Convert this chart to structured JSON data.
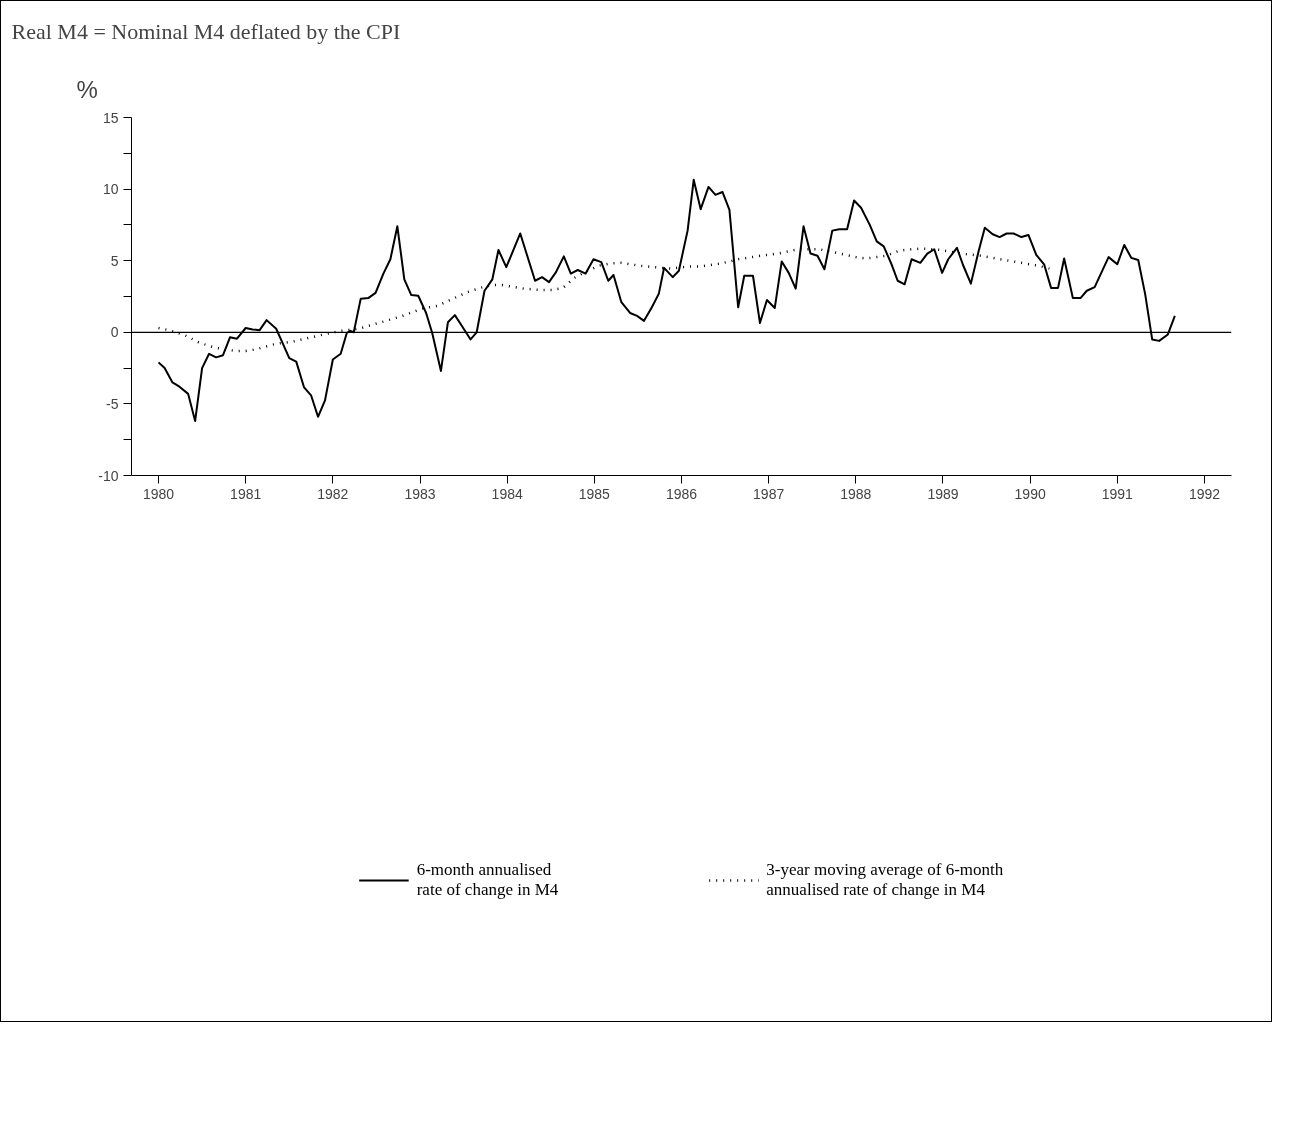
{
  "chart_data": {
    "type": "line",
    "title": "Real M4 = Nominal M4 deflated by the CPI",
    "ylabel": "%",
    "xlim": [
      1979.69,
      1992.31
    ],
    "ylim": [
      -10,
      15
    ],
    "xticks": [
      1980,
      1981,
      1982,
      1983,
      1984,
      1985,
      1986,
      1987,
      1988,
      1989,
      1990,
      1991,
      1992
    ],
    "yticks": [
      -10,
      {
        "value": -7.5,
        "label": null
      },
      -5,
      {
        "value": -2.5,
        "label": null
      },
      0,
      {
        "value": 2.5,
        "label": null
      },
      5,
      {
        "value": 7.5,
        "label": null
      },
      10,
      {
        "value": 12.5,
        "label": null
      },
      15
    ],
    "grid": false,
    "legend": "bottom",
    "ref_lines": [
      {
        "axis": "y",
        "value": 0,
        "color": "#000000",
        "line_style": "solid"
      }
    ],
    "series": [
      {
        "name": "6-month annualised rate of change in M4",
        "color": "#000000",
        "line_style": "solid",
        "x": [
          1980.0,
          1980.07,
          1980.16,
          1980.24,
          1980.34,
          1980.42,
          1980.5,
          1980.58,
          1980.66,
          1980.74,
          1980.82,
          1980.9,
          1981.0,
          1981.08,
          1981.16,
          1981.24,
          1981.35,
          1981.42,
          1981.5,
          1981.58,
          1981.67,
          1981.75,
          1981.83,
          1981.91,
          1982.0,
          1982.09,
          1982.16,
          1982.2,
          1982.24,
          1982.32,
          1982.41,
          1982.49,
          1982.58,
          1982.66,
          1982.74,
          1982.82,
          1982.9,
          1982.98,
          1983.07,
          1983.14,
          1983.24,
          1983.32,
          1983.4,
          1983.49,
          1983.58,
          1983.65,
          1983.74,
          1983.83,
          1983.9,
          1983.99,
          1984.15,
          1984.32,
          1984.4,
          1984.48,
          1984.56,
          1984.65,
          1984.73,
          1984.81,
          1984.9,
          1984.99,
          1985.08,
          1985.16,
          1985.22,
          1985.31,
          1985.41,
          1985.49,
          1985.57,
          1985.66,
          1985.74,
          1985.8,
          1985.9,
          1985.97,
          1986.07,
          1986.14,
          1986.22,
          1986.31,
          1986.39,
          1986.47,
          1986.55,
          1986.65,
          1986.72,
          1986.82,
          1986.9,
          1986.98,
          1987.07,
          1987.15,
          1987.23,
          1987.31,
          1987.4,
          1987.48,
          1987.56,
          1987.64,
          1987.73,
          1987.81,
          1987.9,
          1987.98,
          1988.06,
          1988.16,
          1988.24,
          1988.32,
          1988.41,
          1988.48,
          1988.56,
          1988.64,
          1988.74,
          1988.82,
          1988.9,
          1988.99,
          1989.06,
          1989.16,
          1989.23,
          1989.32,
          1989.41,
          1989.48,
          1989.57,
          1989.65,
          1989.73,
          1989.81,
          1989.9,
          1989.98,
          1990.07,
          1990.16,
          1990.24,
          1990.32,
          1990.39,
          1990.49,
          1990.58,
          1990.65,
          1990.74,
          1990.82,
          1990.9,
          1991.0,
          1991.08,
          1991.16,
          1991.24,
          1991.32,
          1991.4,
          1991.48,
          1991.58,
          1991.66
        ],
        "values": [
          -2.1,
          -2.5,
          -3.5,
          -3.8,
          -4.3,
          -6.2,
          -2.5,
          -1.5,
          -1.75,
          -1.6,
          -0.35,
          -0.45,
          0.3,
          0.2,
          0.15,
          0.85,
          0.25,
          -0.7,
          -1.8,
          -2.05,
          -3.85,
          -4.4,
          -5.9,
          -4.75,
          -1.9,
          -1.5,
          -0.05,
          0.1,
          0,
          2.35,
          2.4,
          2.75,
          4.1,
          5.1,
          7.4,
          3.7,
          2.6,
          2.55,
          1.35,
          -0.05,
          -2.7,
          0.7,
          1.2,
          0.35,
          -0.5,
          0,
          2.9,
          3.7,
          5.75,
          4.55,
          6.9,
          3.6,
          3.85,
          3.5,
          4.2,
          5.3,
          4.1,
          4.35,
          4.1,
          5.1,
          4.9,
          3.6,
          4.0,
          2.1,
          1.35,
          1.15,
          0.8,
          1.75,
          2.7,
          4.5,
          3.85,
          4.3,
          7.1,
          10.65,
          8.6,
          10.15,
          9.6,
          9.8,
          8.55,
          1.75,
          3.95,
          3.95,
          0.65,
          2.25,
          1.7,
          4.95,
          4.15,
          3.05,
          7.4,
          5.5,
          5.35,
          4.4,
          7.1,
          7.2,
          7.2,
          9.2,
          8.7,
          7.5,
          6.35,
          6.0,
          4.75,
          3.6,
          3.35,
          5.1,
          4.85,
          5.5,
          5.8,
          4.15,
          5.1,
          5.9,
          4.7,
          3.4,
          5.7,
          7.3,
          6.85,
          6.65,
          6.9,
          6.9,
          6.65,
          6.8,
          5.4,
          4.75,
          3.1,
          3.1,
          5.15,
          2.4,
          2.4,
          2.9,
          3.15,
          4.2,
          5.25,
          4.75,
          6.1,
          5.2,
          5.05,
          2.65,
          -0.5,
          -0.6,
          -0.15,
          1.15
        ]
      },
      {
        "name": "3-year moving average of 6-month annualised rate of change in M4",
        "color": "#000000",
        "line_style": "dotted",
        "x": [
          1980.0,
          1980.12,
          1980.3,
          1980.46,
          1980.58,
          1980.67,
          1980.88,
          1981.0,
          1981.11,
          1981.23,
          1981.35,
          1981.54,
          1981.68,
          1981.86,
          1981.97,
          1982.09,
          1982.3,
          1982.41,
          1982.61,
          1982.8,
          1983.02,
          1983.2,
          1983.38,
          1983.54,
          1983.72,
          1983.83,
          1983.94,
          1984.19,
          1984.39,
          1984.52,
          1984.64,
          1984.77,
          1984.91,
          1985.05,
          1985.18,
          1985.31,
          1985.52,
          1985.68,
          1985.87,
          1986.1,
          1986.22,
          1986.45,
          1986.65,
          1986.91,
          1987.11,
          1987.34,
          1987.58,
          1987.78,
          1988.0,
          1988.12,
          1988.35,
          1988.5,
          1988.64,
          1988.77,
          1988.97,
          1989.2,
          1989.43,
          1989.66,
          1989.9,
          1990.09,
          1990.22
        ],
        "values": [
          0.3,
          0.15,
          -0.2,
          -0.7,
          -0.95,
          -1.1,
          -1.3,
          -1.3,
          -1.2,
          -1.0,
          -0.8,
          -0.65,
          -0.45,
          -0.2,
          -0.05,
          0.1,
          0.25,
          0.45,
          0.8,
          1.15,
          1.65,
          1.85,
          2.35,
          2.8,
          3.15,
          3.3,
          3.3,
          3.05,
          2.95,
          2.95,
          3.1,
          3.8,
          4.25,
          4.65,
          4.8,
          4.85,
          4.65,
          4.55,
          4.45,
          4.6,
          4.6,
          4.8,
          5.1,
          5.35,
          5.5,
          5.8,
          5.8,
          5.55,
          5.25,
          5.15,
          5.35,
          5.7,
          5.8,
          5.85,
          5.75,
          5.5,
          5.35,
          5.1,
          4.85,
          4.65,
          4.45
        ]
      }
    ]
  }
}
